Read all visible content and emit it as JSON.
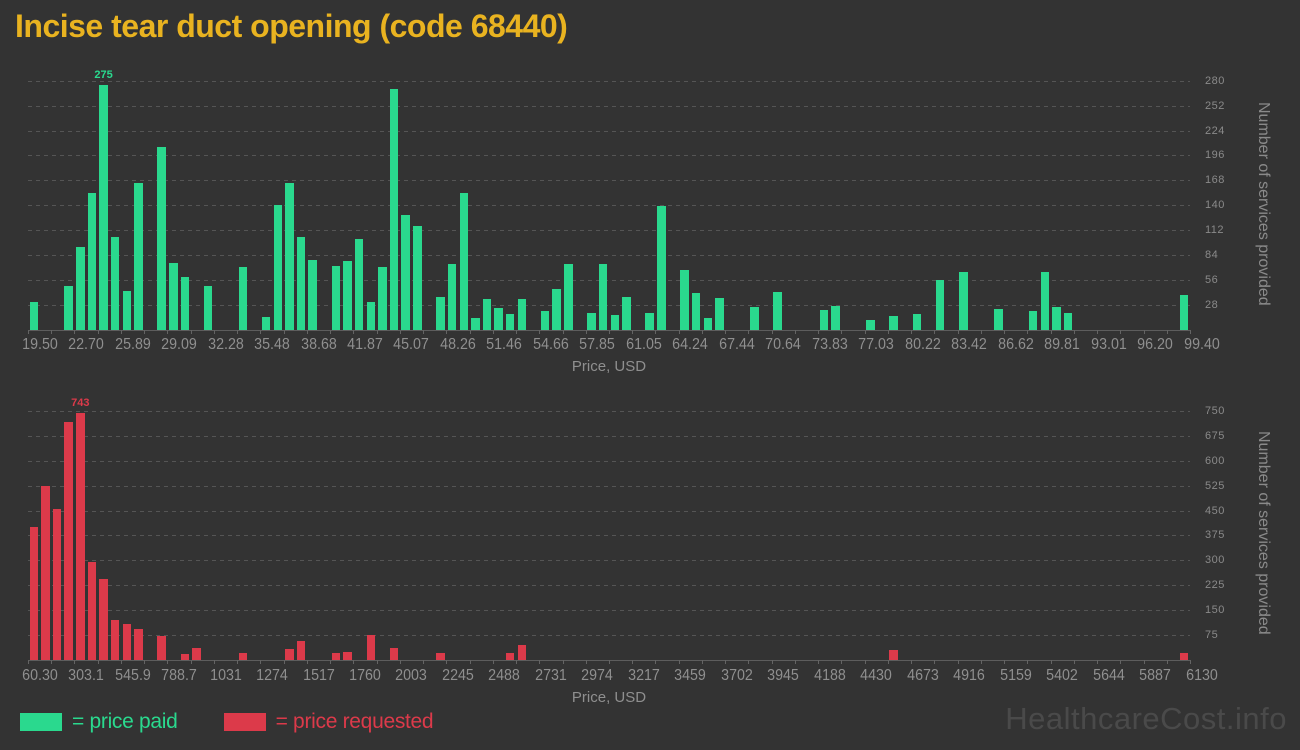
{
  "page": {
    "title": "Incise tear duct opening (code 68440)",
    "watermark": "HealthcareCost.info",
    "background_color": "#333333",
    "title_color": "#E9B320",
    "watermark_color": "#4A4A4A",
    "axis_text_color": "#8F8F8F"
  },
  "legend": {
    "paid_label": "= price paid",
    "requested_label": "= price requested",
    "paid_color": "#2AD98E",
    "requested_color": "#DC3A4A"
  },
  "chart_data": [
    {
      "type": "bar",
      "name": "price paid",
      "color": "#2AD98E",
      "xlabel": "Price, USD",
      "ylabel": "Number of services provided",
      "grid": "dashed-horizontal",
      "bin_start": 19.5,
      "bin_width": 0.8,
      "x_tick_labels": [
        "19.50",
        "22.70",
        "25.89",
        "29.09",
        "32.28",
        "35.48",
        "38.68",
        "41.87",
        "45.07",
        "48.26",
        "51.46",
        "54.66",
        "57.85",
        "61.05",
        "64.24",
        "67.44",
        "70.64",
        "73.83",
        "77.03",
        "80.22",
        "83.42",
        "86.62",
        "89.81",
        "93.01",
        "96.20",
        "99.40"
      ],
      "y_ticks": [
        280,
        252,
        224,
        196,
        168,
        140,
        112,
        84,
        56,
        28
      ],
      "ylim": [
        0,
        283
      ],
      "values": [
        31,
        0,
        0,
        49,
        93,
        154,
        275,
        105,
        44,
        165,
        0,
        205,
        75,
        60,
        0,
        49,
        0,
        0,
        71,
        0,
        15,
        140,
        165,
        104,
        79,
        0,
        72,
        77,
        102,
        31,
        71,
        271,
        129,
        117,
        0,
        37,
        74,
        154,
        13,
        35,
        25,
        18,
        35,
        0,
        21,
        46,
        74,
        0,
        19,
        74,
        17,
        37,
        0,
        19,
        139,
        0,
        67,
        42,
        13,
        36,
        0,
        0,
        26,
        0,
        43,
        0,
        0,
        0,
        22,
        27,
        0,
        0,
        11,
        0,
        16,
        0,
        18,
        0,
        56,
        0,
        65,
        0,
        0,
        24,
        0,
        0,
        21,
        65,
        26,
        19,
        0,
        0,
        0,
        0,
        0,
        0,
        0,
        0,
        0,
        39
      ],
      "peak": {
        "bin": 6,
        "label": "275"
      }
    },
    {
      "type": "bar",
      "name": "price requested",
      "color": "#DC3A4A",
      "xlabel": "Price, USD",
      "ylabel": "Number of services provided",
      "grid": "dashed-horizontal",
      "bin_start": 60.3,
      "bin_width": 60.7,
      "x_tick_labels": [
        "60.30",
        "303.1",
        "545.9",
        "788.7",
        "1031",
        "1274",
        "1517",
        "1760",
        "2003",
        "2245",
        "2488",
        "2731",
        "2974",
        "3217",
        "3459",
        "3702",
        "3945",
        "4188",
        "4430",
        "4673",
        "4916",
        "5159",
        "5402",
        "5644",
        "5887",
        "6130"
      ],
      "y_ticks": [
        750,
        675,
        600,
        525,
        450,
        375,
        300,
        225,
        150,
        75
      ],
      "ylim": [
        0,
        768
      ],
      "values": [
        400,
        523,
        454,
        716,
        743,
        295,
        244,
        120,
        108,
        93,
        0,
        72,
        0,
        18,
        36,
        0,
        0,
        0,
        21,
        0,
        0,
        0,
        33,
        57,
        0,
        0,
        21,
        25,
        0,
        75,
        0,
        37,
        0,
        0,
        0,
        20,
        0,
        0,
        0,
        0,
        0,
        20,
        45,
        0,
        0,
        0,
        0,
        0,
        0,
        0,
        0,
        0,
        0,
        0,
        0,
        0,
        0,
        0,
        0,
        0,
        0,
        0,
        0,
        0,
        0,
        0,
        0,
        0,
        0,
        0,
        0,
        0,
        0,
        0,
        30,
        0,
        0,
        0,
        0,
        0,
        0,
        0,
        0,
        0,
        0,
        0,
        0,
        0,
        0,
        0,
        0,
        0,
        0,
        0,
        0,
        0,
        0,
        0,
        0,
        20
      ],
      "peak": {
        "bin": 4,
        "label": "743"
      }
    }
  ]
}
